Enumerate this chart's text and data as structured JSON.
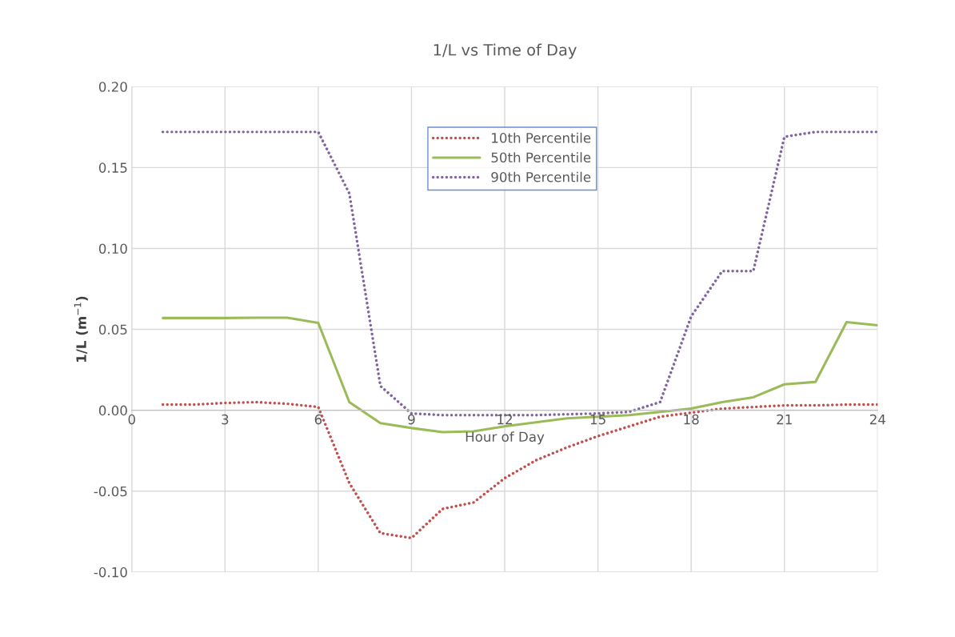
{
  "chart_data": {
    "type": "line",
    "title": "1/L vs Time of Day",
    "xlabel": "Hour of Day",
    "ylabel": "1/L (m$^{−1}$)",
    "x": [
      1,
      2,
      3,
      4,
      5,
      6,
      7,
      8,
      9,
      10,
      11,
      12,
      13,
      14,
      15,
      16,
      17,
      18,
      19,
      20,
      21,
      22,
      23,
      24
    ],
    "series": [
      {
        "name": "10th Percentile",
        "color": "#c0504d",
        "line_style": "dotted",
        "values": [
          0.0035,
          0.0035,
          0.0045,
          0.005,
          0.004,
          0.002,
          -0.045,
          -0.076,
          -0.079,
          -0.061,
          -0.057,
          -0.042,
          -0.031,
          -0.023,
          -0.016,
          -0.01,
          -0.004,
          -0.0015,
          0.001,
          0.002,
          0.003,
          0.003,
          0.0035,
          0.0035
        ]
      },
      {
        "name": "50th Percentile",
        "color": "#9bbb59",
        "line_style": "solid",
        "values": [
          0.057,
          0.057,
          0.057,
          0.0572,
          0.0572,
          0.054,
          0.005,
          -0.008,
          -0.011,
          -0.0135,
          -0.013,
          -0.01,
          -0.0075,
          -0.005,
          -0.004,
          -0.003,
          -0.001,
          0.001,
          0.005,
          0.008,
          0.016,
          0.0175,
          0.0545,
          0.0525
        ]
      },
      {
        "name": "90th Percentile",
        "color": "#8064a2",
        "line_style": "dotted",
        "values": [
          0.172,
          0.172,
          0.172,
          0.172,
          0.172,
          0.172,
          0.134,
          0.015,
          -0.002,
          -0.003,
          -0.003,
          -0.003,
          -0.003,
          -0.0025,
          -0.002,
          -0.001,
          0.005,
          0.058,
          0.086,
          0.086,
          0.169,
          0.172,
          0.172,
          0.172
        ]
      }
    ],
    "xlim": [
      0,
      24
    ],
    "xticks": [
      0,
      3,
      6,
      9,
      12,
      15,
      18,
      21,
      24
    ],
    "ylim": [
      -0.1,
      0.2
    ],
    "yticks": [
      {
        "value": -0.1,
        "label": "-0.10"
      },
      {
        "value": -0.05,
        "label": "-0.05"
      },
      {
        "value": 0,
        "label": "0.00"
      },
      {
        "value": 0.05,
        "label": "0.05"
      },
      {
        "value": 0.1,
        "label": "0.10"
      },
      {
        "value": 0.15,
        "label": "0.15"
      },
      {
        "value": 0.2,
        "label": "0.20"
      }
    ],
    "grid": true,
    "legend": "top"
  }
}
